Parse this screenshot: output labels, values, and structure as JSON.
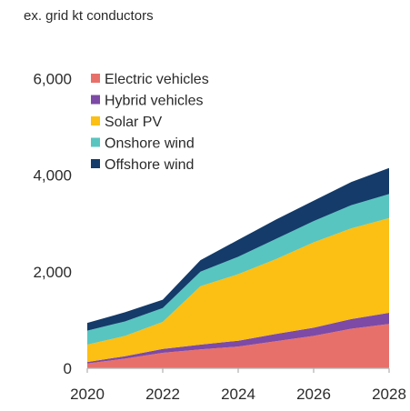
{
  "chart_data": {
    "type": "area",
    "stacked": true,
    "ylabel": "ex. grid kt conductors",
    "x": [
      2020,
      2021,
      2022,
      2023,
      2024,
      2025,
      2026,
      2027,
      2028
    ],
    "xticks": [
      "2020",
      "2022",
      "2024",
      "2026",
      "2028"
    ],
    "yticks": [
      "0",
      "2,000",
      "4,000",
      "6,000"
    ],
    "ylim": [
      0,
      6500
    ],
    "xlim": [
      2020,
      2028
    ],
    "legend_position": "top-left",
    "series": [
      {
        "name": "Electric vehicles",
        "color": "#e8706b",
        "values": [
          100,
          200,
          320,
          390,
          450,
          560,
          670,
          820,
          920
        ]
      },
      {
        "name": "Hybrid vehicles",
        "color": "#7d4aa6",
        "values": [
          30,
          50,
          80,
          100,
          120,
          150,
          170,
          200,
          230
        ]
      },
      {
        "name": "Solar PV",
        "color": "#fcbf13",
        "values": [
          360,
          420,
          560,
          1210,
          1380,
          1550,
          1770,
          1880,
          1960
        ]
      },
      {
        "name": "Onshore wind",
        "color": "#58c5c1",
        "values": [
          290,
          300,
          290,
          300,
          360,
          420,
          440,
          480,
          500
        ]
      },
      {
        "name": "Offshore wind",
        "color": "#143b69",
        "values": [
          160,
          190,
          170,
          240,
          350,
          400,
          420,
          480,
          540
        ]
      }
    ]
  }
}
